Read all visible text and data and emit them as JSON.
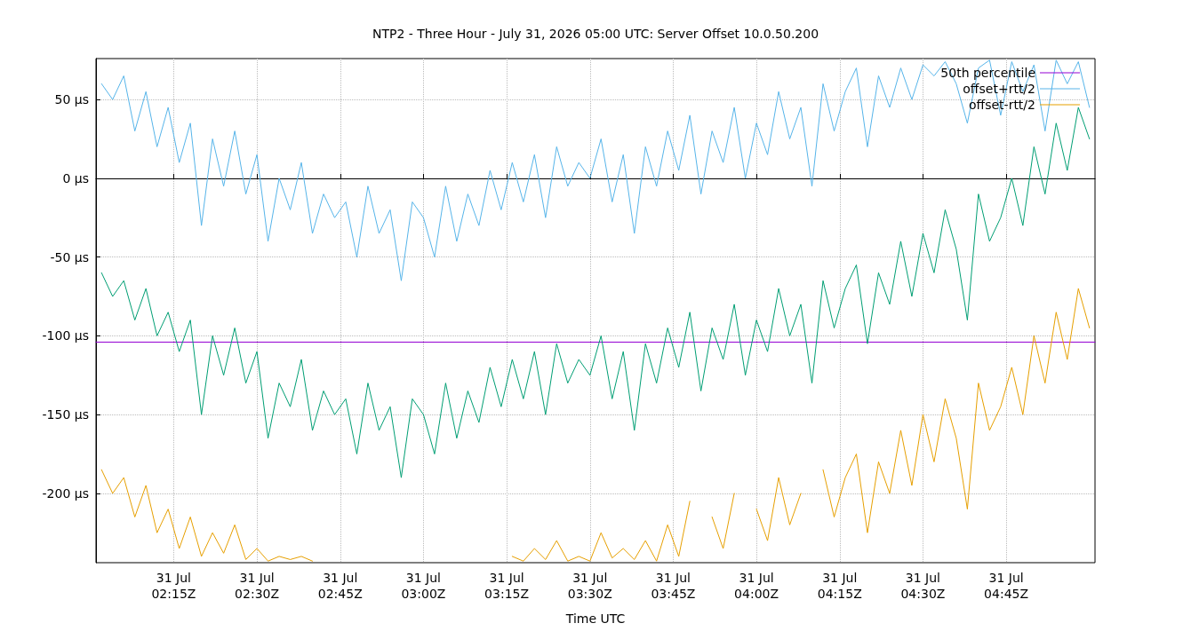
{
  "chart_data": {
    "type": "line",
    "title": "NTP2 - Three Hour - July 31, 2026 05:00 UTC: Server Offset 10.0.50.200",
    "xlabel": "Time UTC",
    "x": [
      "2026-07-31T02:02",
      "2026-07-31T02:04",
      "2026-07-31T02:06",
      "2026-07-31T02:08",
      "2026-07-31T02:10",
      "2026-07-31T02:12",
      "2026-07-31T02:14",
      "2026-07-31T02:16",
      "2026-07-31T02:18",
      "2026-07-31T02:20",
      "2026-07-31T02:22",
      "2026-07-31T02:24",
      "2026-07-31T02:26",
      "2026-07-31T02:28",
      "2026-07-31T02:30",
      "2026-07-31T02:32",
      "2026-07-31T02:34",
      "2026-07-31T02:36",
      "2026-07-31T02:38",
      "2026-07-31T02:40",
      "2026-07-31T02:42",
      "2026-07-31T02:44",
      "2026-07-31T02:46",
      "2026-07-31T02:48",
      "2026-07-31T02:50",
      "2026-07-31T02:52",
      "2026-07-31T02:54",
      "2026-07-31T02:56",
      "2026-07-31T02:58",
      "2026-07-31T03:00",
      "2026-07-31T03:02",
      "2026-07-31T03:04",
      "2026-07-31T03:06",
      "2026-07-31T03:08",
      "2026-07-31T03:10",
      "2026-07-31T03:12",
      "2026-07-31T03:14",
      "2026-07-31T03:16",
      "2026-07-31T03:18",
      "2026-07-31T03:20",
      "2026-07-31T03:22",
      "2026-07-31T03:24",
      "2026-07-31T03:26",
      "2026-07-31T03:28",
      "2026-07-31T03:30",
      "2026-07-31T03:32",
      "2026-07-31T03:34",
      "2026-07-31T03:36",
      "2026-07-31T03:38",
      "2026-07-31T03:40",
      "2026-07-31T03:42",
      "2026-07-31T03:44",
      "2026-07-31T03:46",
      "2026-07-31T03:48",
      "2026-07-31T03:50",
      "2026-07-31T03:52",
      "2026-07-31T03:54",
      "2026-07-31T03:56",
      "2026-07-31T03:58",
      "2026-07-31T04:00",
      "2026-07-31T04:02",
      "2026-07-31T04:04",
      "2026-07-31T04:06",
      "2026-07-31T04:08",
      "2026-07-31T04:10",
      "2026-07-31T04:12",
      "2026-07-31T04:14",
      "2026-07-31T04:16",
      "2026-07-31T04:18",
      "2026-07-31T04:20",
      "2026-07-31T04:22",
      "2026-07-31T04:24",
      "2026-07-31T04:26",
      "2026-07-31T04:28",
      "2026-07-31T04:30",
      "2026-07-31T04:32",
      "2026-07-31T04:34",
      "2026-07-31T04:36",
      "2026-07-31T04:38",
      "2026-07-31T04:40",
      "2026-07-31T04:42",
      "2026-07-31T04:44",
      "2026-07-31T04:46",
      "2026-07-31T04:48",
      "2026-07-31T04:50",
      "2026-07-31T04:52",
      "2026-07-31T04:54",
      "2026-07-31T04:56",
      "2026-07-31T04:58",
      "2026-07-31T05:00"
    ],
    "series": [
      {
        "name": "50th percentile",
        "color": "#9400d3",
        "x": [
          "2026-07-31T02:01",
          "2026-07-31T05:01"
        ],
        "values": [
          -104,
          -104
        ]
      },
      {
        "color": "#009e73",
        "values": [
          -60,
          -75,
          -65,
          -90,
          -70,
          -100,
          -85,
          -110,
          -90,
          -150,
          -100,
          -125,
          -95,
          -130,
          -110,
          -165,
          -130,
          -145,
          -115,
          -160,
          -135,
          -150,
          -140,
          -175,
          -130,
          -160,
          -145,
          -190,
          -140,
          -150,
          -175,
          -130,
          -165,
          -135,
          -155,
          -120,
          -145,
          -115,
          -140,
          -110,
          -150,
          -105,
          -130,
          -115,
          -125,
          -100,
          -140,
          -110,
          -160,
          -105,
          -130,
          -95,
          -120,
          -85,
          -135,
          -95,
          -115,
          -80,
          -125,
          -90,
          -110,
          -70,
          -100,
          -80,
          -130,
          -65,
          -95,
          -70,
          -55,
          -105,
          -60,
          -80,
          -40,
          -75,
          -35,
          -60,
          -20,
          -45,
          -90,
          -10,
          -40,
          -25,
          0,
          -30,
          20,
          -10,
          35,
          5,
          45,
          25
        ]
      },
      {
        "name": "offset+rtt/2",
        "color": "#56b4e9",
        "values": [
          60,
          50,
          65,
          30,
          55,
          20,
          45,
          10,
          35,
          -30,
          25,
          -5,
          30,
          -10,
          15,
          -40,
          0,
          -20,
          10,
          -35,
          -10,
          -25,
          -15,
          -50,
          -5,
          -35,
          -20,
          -65,
          -15,
          -25,
          -50,
          -5,
          -40,
          -10,
          -30,
          5,
          -20,
          10,
          -15,
          15,
          -25,
          20,
          -5,
          10,
          0,
          25,
          -15,
          15,
          -35,
          20,
          -5,
          30,
          5,
          40,
          -10,
          30,
          10,
          45,
          0,
          35,
          15,
          55,
          25,
          45,
          -5,
          60,
          30,
          55,
          70,
          20,
          65,
          45,
          70,
          50,
          72,
          65,
          74,
          60,
          35,
          70,
          75,
          40,
          74,
          55,
          72,
          30,
          75,
          60,
          74,
          45
        ]
      },
      {
        "name": "offset-rtt/2",
        "color": "#e69f00",
        "values": [
          -185,
          -200,
          -190,
          -215,
          -195,
          -225,
          -210,
          -235,
          -215,
          -240,
          -225,
          -238,
          -220,
          -242,
          -235,
          -243,
          -240,
          -242,
          -240,
          -243,
          null,
          null,
          null,
          null,
          null,
          null,
          null,
          null,
          null,
          null,
          null,
          null,
          null,
          null,
          null,
          null,
          null,
          -240,
          -243,
          -235,
          -242,
          -230,
          -243,
          -240,
          -243,
          -225,
          -241,
          -235,
          -242,
          -230,
          -243,
          -220,
          -240,
          -205,
          null,
          -215,
          -235,
          -200,
          null,
          -210,
          -230,
          -190,
          -220,
          -200,
          null,
          -185,
          -215,
          -190,
          -175,
          -225,
          -180,
          -200,
          -160,
          -195,
          -150,
          -180,
          -140,
          -165,
          -210,
          -130,
          -160,
          -145,
          -120,
          -150,
          -100,
          -130,
          -85,
          -115,
          -70,
          -95
        ]
      }
    ],
    "xlim": [
      "2026-07-31T02:01",
      "2026-07-31T05:01"
    ],
    "xticks": [
      {
        "value": "2026-07-31T02:15",
        "label": "31 Jul\n02:15Z"
      },
      {
        "value": "2026-07-31T02:30",
        "label": "31 Jul\n02:30Z"
      },
      {
        "value": "2026-07-31T02:45",
        "label": "31 Jul\n02:45Z"
      },
      {
        "value": "2026-07-31T03:00",
        "label": "31 Jul\n03:00Z"
      },
      {
        "value": "2026-07-31T03:15",
        "label": "31 Jul\n03:15Z"
      },
      {
        "value": "2026-07-31T03:30",
        "label": "31 Jul\n03:30Z"
      },
      {
        "value": "2026-07-31T03:45",
        "label": "31 Jul\n03:45Z"
      },
      {
        "value": "2026-07-31T04:00",
        "label": "31 Jul\n04:00Z"
      },
      {
        "value": "2026-07-31T04:15",
        "label": "31 Jul\n04:15Z"
      },
      {
        "value": "2026-07-31T04:30",
        "label": "31 Jul\n04:30Z"
      },
      {
        "value": "2026-07-31T04:45",
        "label": "31 Jul\n04:45Z"
      }
    ],
    "ylim": [
      -244,
      76
    ],
    "yticks": [
      {
        "value": -200,
        "label": "-200 µs"
      },
      {
        "value": -150,
        "label": "-150 µs"
      },
      {
        "value": -100,
        "label": "-100 µs"
      },
      {
        "value": -50,
        "label": "-50 µs"
      },
      {
        "value": 0,
        "label": "0 µs"
      },
      {
        "value": 50,
        "label": "50 µs"
      }
    ],
    "grid": true,
    "legend": "top right",
    "marker": "none",
    "line_style": "solid"
  }
}
